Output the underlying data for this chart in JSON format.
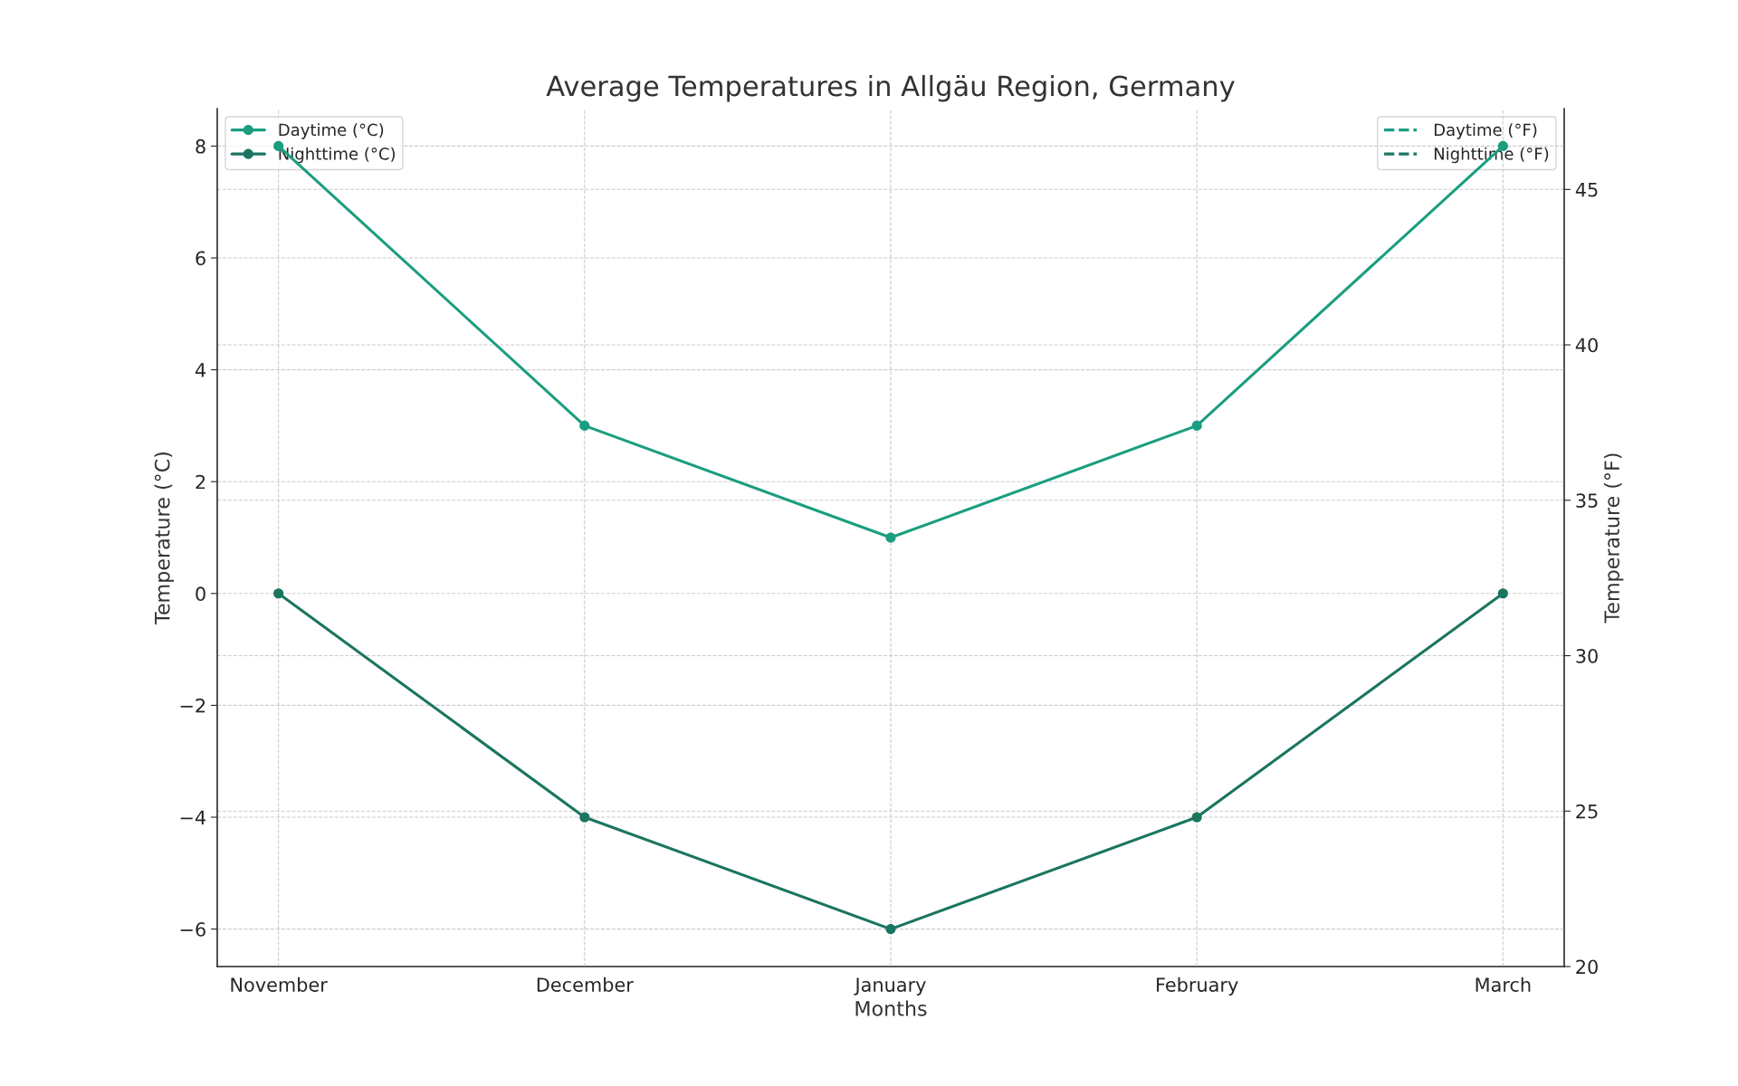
{
  "chart_data": {
    "type": "line",
    "title": "Average Temperatures in Allgäu Region, Germany",
    "xlabel": "Months",
    "ylabel": "Temperature (°C)",
    "y2label": "Temperature (°F)",
    "categories": [
      "November",
      "December",
      "January",
      "February",
      "March"
    ],
    "series": [
      {
        "name": "Daytime (°C)",
        "color": "#1a9e7f",
        "values": [
          8,
          3,
          1,
          3,
          8
        ],
        "marker": "circle",
        "line_style": "solid"
      },
      {
        "name": "Nighttime (°C)",
        "color": "#1a7560",
        "values": [
          0,
          -4,
          -6,
          -4,
          0
        ],
        "marker": "circle",
        "line_style": "solid"
      },
      {
        "name": "Daytime (°F)",
        "color": "#1c9f82",
        "values": [
          null,
          null,
          null,
          null,
          null
        ],
        "marker": "none",
        "line_style": "dashed",
        "axis": "y2"
      },
      {
        "name": "Nighttime (°F)",
        "color": "#1c7763",
        "values": [
          null,
          null,
          null,
          null,
          null
        ],
        "marker": "none",
        "line_style": "dashed",
        "axis": "y2"
      }
    ],
    "ylim": [
      -6.67,
      8.67
    ],
    "yticks": [
      {
        "value": -6,
        "label": "−6"
      },
      {
        "value": -4,
        "label": "−4"
      },
      {
        "value": -2,
        "label": "−2"
      },
      0,
      2,
      4,
      6,
      8
    ],
    "y2lim": [
      20,
      47.6
    ],
    "y2ticks": [
      20,
      25,
      30,
      35,
      40,
      45
    ],
    "grid": true,
    "legend": "top left"
  }
}
